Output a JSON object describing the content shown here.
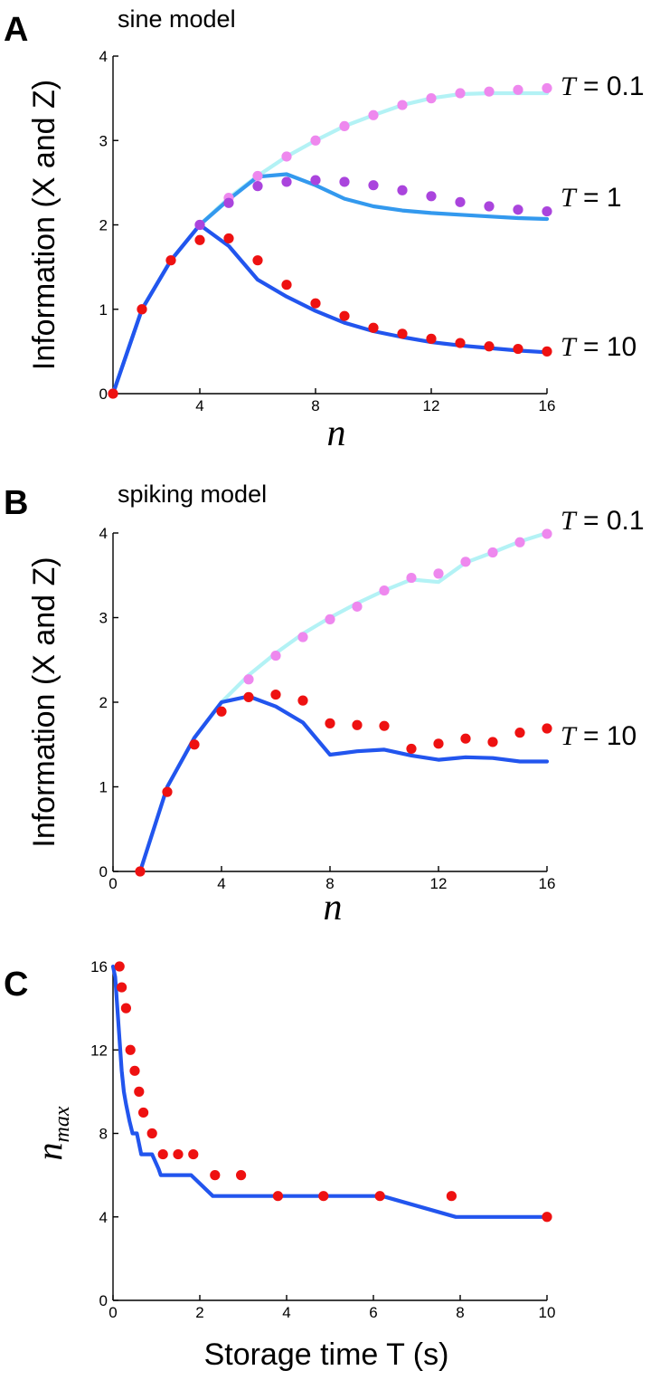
{
  "chart_data": [
    {
      "panel": "A",
      "type": "line",
      "title": "sine model",
      "xlabel": "n",
      "ylabel": "Information (X and Z)",
      "xlim": [
        1,
        16
      ],
      "ylim": [
        0,
        4
      ],
      "xticks": [
        "4",
        "8",
        "12",
        "16"
      ],
      "yticks": [
        "0",
        "1",
        "2",
        "3",
        "4"
      ],
      "series": [
        {
          "name": "T = 0.1",
          "label_T": "T",
          "label_val": " = 0.1",
          "kind": "line",
          "color": "#b3f2f5",
          "x": [
            1,
            2,
            3,
            4,
            5,
            6,
            7,
            8,
            9,
            10,
            11,
            12,
            13,
            14,
            15,
            16
          ],
          "y": [
            0,
            1,
            1.58,
            2,
            2.32,
            2.58,
            2.81,
            3,
            3.17,
            3.3,
            3.42,
            3.5,
            3.55,
            3.56,
            3.56,
            3.56
          ]
        },
        {
          "name": "T = 0.1",
          "kind": "points",
          "color": "#ee88ee",
          "x": [
            1,
            2,
            3,
            4,
            5,
            6,
            7,
            8,
            9,
            10,
            11,
            12,
            13,
            14,
            15,
            16
          ],
          "y": [
            0,
            1,
            1.58,
            2,
            2.32,
            2.58,
            2.81,
            3,
            3.17,
            3.3,
            3.42,
            3.5,
            3.56,
            3.58,
            3.6,
            3.62
          ]
        },
        {
          "name": "T = 1",
          "label_T": "T",
          "label_val": " = 1",
          "kind": "line",
          "color": "#3399ee",
          "x": [
            1,
            2,
            3,
            4,
            5,
            6,
            7,
            8,
            9,
            10,
            11,
            12,
            13,
            14,
            15,
            16
          ],
          "y": [
            0,
            1,
            1.58,
            2,
            2.3,
            2.57,
            2.6,
            2.47,
            2.31,
            2.22,
            2.17,
            2.14,
            2.12,
            2.1,
            2.08,
            2.07
          ]
        },
        {
          "name": "T = 1",
          "kind": "points",
          "color": "#aa44dd",
          "x": [
            4,
            5,
            6,
            7,
            8,
            9,
            10,
            11,
            12,
            13,
            14,
            15,
            16
          ],
          "y": [
            2,
            2.26,
            2.46,
            2.51,
            2.53,
            2.51,
            2.47,
            2.41,
            2.34,
            2.27,
            2.22,
            2.18,
            2.16
          ]
        },
        {
          "name": "T = 10",
          "label_T": "T",
          "label_val": " = 10",
          "kind": "line",
          "color": "#2255ee",
          "x": [
            1,
            2,
            3,
            4,
            5,
            6,
            7,
            8,
            9,
            10,
            11,
            12,
            13,
            14,
            15,
            16
          ],
          "y": [
            0,
            1,
            1.58,
            2,
            1.75,
            1.35,
            1.15,
            0.98,
            0.84,
            0.74,
            0.67,
            0.61,
            0.57,
            0.54,
            0.51,
            0.49
          ]
        },
        {
          "name": "T = 10",
          "kind": "points",
          "color": "#ee1111",
          "x": [
            1,
            2,
            3,
            4,
            5,
            6,
            7,
            8,
            9,
            10,
            11,
            12,
            13,
            14,
            15,
            16
          ],
          "y": [
            0,
            1,
            1.58,
            1.82,
            1.84,
            1.58,
            1.29,
            1.07,
            0.92,
            0.78,
            0.71,
            0.65,
            0.6,
            0.56,
            0.53,
            0.5
          ]
        }
      ]
    },
    {
      "panel": "B",
      "type": "line",
      "title": "spiking model",
      "xlabel": "n",
      "ylabel": "Information (X and Z)",
      "xlim": [
        0,
        16
      ],
      "ylim": [
        0,
        4
      ],
      "xticks": [
        "0",
        "4",
        "8",
        "12",
        "16"
      ],
      "yticks": [
        "0",
        "1",
        "2",
        "3",
        "4"
      ],
      "series": [
        {
          "name": "T = 0.1",
          "label_T": "T",
          "label_val": " = 0.1",
          "kind": "line",
          "color": "#b3f2f5",
          "x": [
            1,
            2,
            3,
            4,
            5,
            6,
            7,
            8,
            9,
            10,
            11,
            12,
            13,
            14,
            15,
            16
          ],
          "y": [
            0,
            1,
            1.58,
            2,
            2.32,
            2.58,
            2.81,
            3,
            3.17,
            3.32,
            3.45,
            3.42,
            3.65,
            3.77,
            3.9,
            4
          ]
        },
        {
          "name": "T = 0.1",
          "kind": "points",
          "color": "#ee88ee",
          "x": [
            5,
            6,
            7,
            8,
            9,
            10,
            11,
            12,
            13,
            14,
            15,
            16
          ],
          "y": [
            2.27,
            2.55,
            2.77,
            2.98,
            3.13,
            3.32,
            3.47,
            3.52,
            3.66,
            3.77,
            3.89,
            3.99
          ]
        },
        {
          "name": "T = 10",
          "label_T": "T",
          "label_val": " = 10",
          "kind": "line",
          "color": "#2255ee",
          "x": [
            1,
            2,
            3,
            4,
            5,
            6,
            7,
            8,
            9,
            10,
            11,
            12,
            13,
            14,
            15,
            16
          ],
          "y": [
            0,
            1,
            1.58,
            2,
            2.07,
            1.95,
            1.76,
            1.38,
            1.42,
            1.44,
            1.37,
            1.32,
            1.35,
            1.34,
            1.3,
            1.3
          ]
        },
        {
          "name": "T = 10",
          "kind": "points",
          "color": "#ee1111",
          "x": [
            1,
            2,
            3,
            4,
            5,
            6,
            7,
            8,
            9,
            10,
            11,
            12,
            13,
            14,
            15,
            16
          ],
          "y": [
            0,
            0.94,
            1.5,
            1.89,
            2.06,
            2.09,
            2.02,
            1.75,
            1.73,
            1.72,
            1.45,
            1.51,
            1.57,
            1.53,
            1.64,
            1.69
          ]
        }
      ]
    },
    {
      "panel": "C",
      "type": "line",
      "title": "",
      "xlabel": "Storage time T (s)",
      "ylabel": "n",
      "ylabel_sub": "max",
      "xlim": [
        0,
        10
      ],
      "ylim": [
        0,
        16
      ],
      "xticks": [
        "0",
        "2",
        "4",
        "6",
        "8",
        "10"
      ],
      "yticks": [
        "0",
        "4",
        "8",
        "12",
        "16"
      ],
      "series": [
        {
          "name": "",
          "kind": "line",
          "color": "#2255ee",
          "x": [
            0,
            0.05,
            0.1,
            0.15,
            0.2,
            0.25,
            0.3,
            0.38,
            0.45,
            0.55,
            0.65,
            0.75,
            0.9,
            1.05,
            1.1,
            1.8,
            2.3,
            3.8,
            6.2,
            7.9,
            9.3,
            10
          ],
          "y": [
            16,
            15.5,
            14,
            12.5,
            11,
            10,
            9.4,
            8.6,
            8,
            8,
            7,
            7,
            7,
            6.3,
            6,
            6,
            5,
            5,
            5,
            4,
            4,
            4
          ]
        },
        {
          "name": "",
          "kind": "points",
          "color": "#ee1111",
          "x": [
            0.15,
            0.2,
            0.3,
            0.4,
            0.5,
            0.6,
            0.7,
            0.9,
            1.15,
            1.5,
            1.85,
            2.35,
            2.95,
            3.8,
            4.85,
            6.15,
            7.8,
            10
          ],
          "y": [
            16,
            15,
            14,
            12,
            11,
            10,
            9,
            8,
            7,
            7,
            7,
            6,
            6,
            5,
            5,
            5,
            5,
            4
          ]
        }
      ]
    }
  ]
}
